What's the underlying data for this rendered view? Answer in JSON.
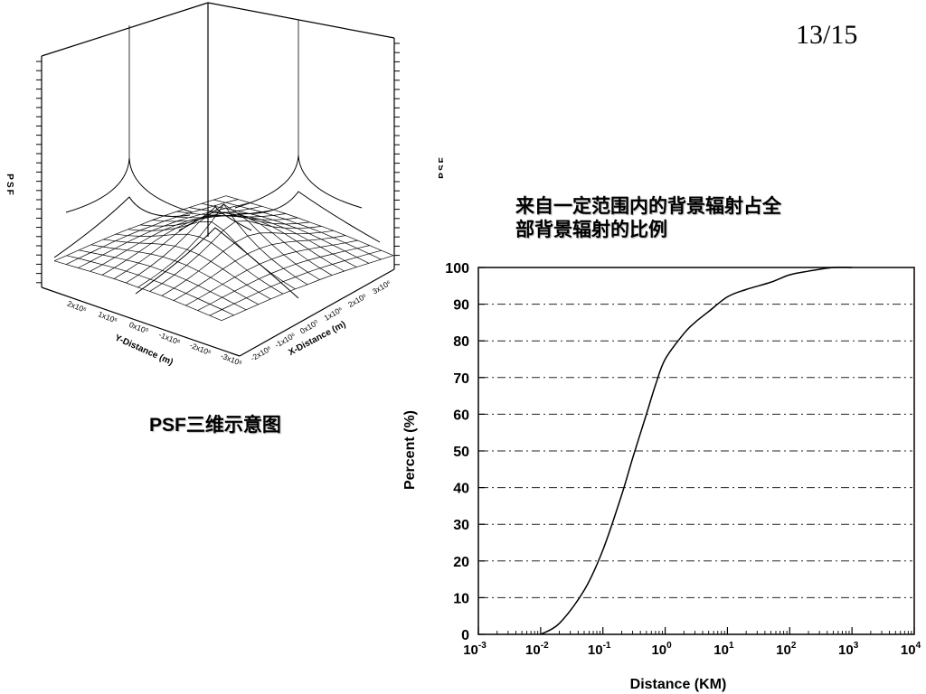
{
  "page_number": "13/15",
  "psf_caption": "PSF三维示意图",
  "psf_figure": {
    "z_axis_label": "PSF",
    "y_axis_label": "Y-Distance (m)",
    "x_axis_label": "X-Distance (m)",
    "y_ticks": [
      "2x10⁶",
      "1x10⁶",
      "0x10⁰",
      "-1x10⁶",
      "-2x10⁶",
      "-3x10⁶"
    ],
    "x_ticks": [
      "-2x10⁶",
      "-1x10⁶",
      "0x10⁰",
      "1x10⁶",
      "2x10⁶",
      "3x10⁶"
    ]
  },
  "cdf_caption": {
    "line1": "来自一定范围内的背景辐射占全",
    "line2": "部背景辐射的比例"
  },
  "chart_data": {
    "type": "line",
    "xlabel": "Distance (KM)",
    "ylabel": "Percent (%)",
    "x_scale": "log",
    "xlim": [
      0.001,
      10000
    ],
    "ylim": [
      0,
      100
    ],
    "x_ticks": [
      {
        "base": "10",
        "exp": "-3"
      },
      {
        "base": "10",
        "exp": "-2"
      },
      {
        "base": "10",
        "exp": "-1"
      },
      {
        "base": "10",
        "exp": "0"
      },
      {
        "base": "10",
        "exp": "1"
      },
      {
        "base": "10",
        "exp": "2"
      },
      {
        "base": "10",
        "exp": "3"
      },
      {
        "base": "10",
        "exp": "4"
      }
    ],
    "y_ticks": [
      "0",
      "10",
      "20",
      "30",
      "40",
      "50",
      "60",
      "70",
      "80",
      "90",
      "100"
    ],
    "grid": "horizontal dash-dot",
    "x": [
      0.01,
      0.02,
      0.05,
      0.1,
      0.2,
      0.3,
      0.5,
      0.7,
      1,
      2,
      3,
      5,
      10,
      20,
      50,
      100,
      200,
      500,
      1000
    ],
    "y": [
      0,
      3,
      12,
      23,
      38,
      48,
      60,
      68,
      75,
      82,
      85,
      88,
      92,
      94,
      96,
      98,
      99,
      100,
      100
    ]
  }
}
